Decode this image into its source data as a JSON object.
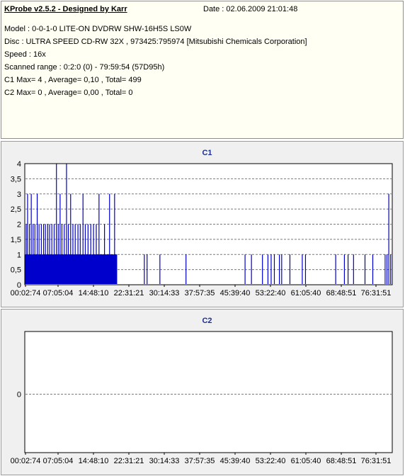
{
  "header": {
    "title": "KProbe v2.5.2 - Designed by Karr",
    "date": "Date : 02.06.2009 21:01:48"
  },
  "info_lines": [
    "Model : 0-0-1-0 LITE-ON DVDRW SHW-16H5S  LS0W",
    "Disc : ULTRA SPEED CD-RW 32X , 973425:795974 [Mitsubishi Chemicals Corporation]",
    "Speed : 16x",
    "Scanned range : 0:2:0 (0) - 79:59:54 (57D95h)",
    "C1 Max= 4 , Average= 0,10 , Total= 499",
    "C2 Max= 0 , Average= 0,00 , Total= 0"
  ],
  "colors": {
    "bar": "#0000cc",
    "grid": "#7a7a7a",
    "title": "#1c2f8c",
    "info_bg": "#fffff3",
    "panel_bg": "#f0f0f0"
  },
  "chart_data": [
    {
      "type": "bar",
      "title": "C1",
      "x_tick_labels": [
        "00:02:74",
        "07:05:04",
        "14:48:10",
        "22:31:21",
        "30:14:33",
        "37:57:35",
        "45:39:40",
        "53:22:40",
        "61:05:40",
        "68:48:51",
        "76:31:51"
      ],
      "y_tick_labels": [
        "0",
        "0,5",
        "1",
        "1,5",
        "2",
        "2,5",
        "3",
        "3,5",
        "4"
      ],
      "xlim_minutes": [
        0.04,
        80.0
      ],
      "ylim": [
        0,
        4
      ],
      "grid": true,
      "spikes_minutes_values": [
        [
          0.2,
          2
        ],
        [
          0.5,
          3
        ],
        [
          0.9,
          2
        ],
        [
          1.3,
          3
        ],
        [
          1.7,
          2
        ],
        [
          2.1,
          2
        ],
        [
          2.6,
          3
        ],
        [
          3.0,
          2
        ],
        [
          3.5,
          2
        ],
        [
          4.0,
          2
        ],
        [
          4.4,
          2
        ],
        [
          4.9,
          2
        ],
        [
          5.3,
          2
        ],
        [
          5.8,
          2
        ],
        [
          6.3,
          2
        ],
        [
          6.8,
          4
        ],
        [
          7.2,
          2
        ],
        [
          7.6,
          3
        ],
        [
          8.0,
          2
        ],
        [
          8.5,
          2
        ],
        [
          9.0,
          4
        ],
        [
          9.4,
          2
        ],
        [
          9.9,
          3
        ],
        [
          10.4,
          2
        ],
        [
          10.9,
          2
        ],
        [
          11.5,
          2
        ],
        [
          12.0,
          2
        ],
        [
          12.6,
          3
        ],
        [
          13.1,
          2
        ],
        [
          13.7,
          2
        ],
        [
          14.3,
          2
        ],
        [
          14.9,
          2
        ],
        [
          15.5,
          2
        ],
        [
          16.1,
          3
        ],
        [
          16.7,
          1
        ],
        [
          17.3,
          2
        ],
        [
          17.9,
          1
        ],
        [
          18.4,
          3
        ],
        [
          19.0,
          1
        ],
        [
          19.5,
          3
        ],
        [
          26.0,
          1
        ],
        [
          26.6,
          1
        ],
        [
          29.4,
          1
        ],
        [
          35.1,
          1
        ],
        [
          48.0,
          1
        ],
        [
          49.4,
          1
        ],
        [
          51.8,
          1
        ],
        [
          53.0,
          1
        ],
        [
          53.7,
          1
        ],
        [
          54.4,
          1
        ],
        [
          55.5,
          1
        ],
        [
          56.0,
          1
        ],
        [
          57.8,
          1
        ],
        [
          60.5,
          1
        ],
        [
          61.2,
          1
        ],
        [
          67.8,
          1
        ],
        [
          69.7,
          1
        ],
        [
          70.5,
          1
        ],
        [
          71.7,
          1
        ],
        [
          74.2,
          1
        ],
        [
          75.9,
          1
        ],
        [
          78.6,
          1
        ],
        [
          79.0,
          1
        ],
        [
          79.4,
          3
        ],
        [
          79.8,
          1
        ]
      ],
      "dense_region_minutes": [
        0.04,
        20.0
      ]
    },
    {
      "type": "bar",
      "title": "C2",
      "x_tick_labels": [
        "00:02:74",
        "07:05:04",
        "14:48:10",
        "22:31:21",
        "30:14:33",
        "37:57:35",
        "45:39:40",
        "53:22:40",
        "61:05:40",
        "68:48:51",
        "76:31:51"
      ],
      "y_tick_labels": [
        "0"
      ],
      "xlim_minutes": [
        0.04,
        80.0
      ],
      "grid": true,
      "spikes_minutes_values": []
    }
  ]
}
